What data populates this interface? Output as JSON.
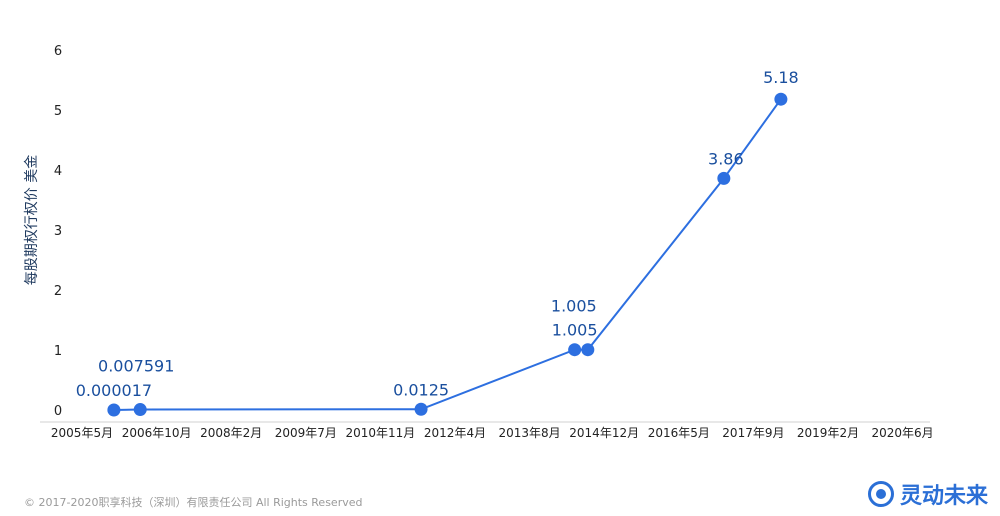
{
  "chart_data": {
    "type": "line",
    "title": "",
    "xlabel": "",
    "ylabel": "每股期权行权价 美金",
    "ylim": [
      0,
      6
    ],
    "yticks": [
      "0",
      "1",
      "2",
      "3",
      "4",
      "5",
      "6"
    ],
    "xticks": [
      "2005年5月",
      "2006年10月",
      "2008年2月",
      "2009年7月",
      "2010年11月",
      "2012年4月",
      "2013年8月",
      "2014年12月",
      "2016年5月",
      "2017年9月",
      "2019年2月",
      "2020年6月"
    ],
    "grid": false,
    "color": "#2d6fe0",
    "series": [
      {
        "x": [
          "2006-03",
          "2006-09",
          "2012-01",
          "2014-12",
          "2015-03",
          "2017-10",
          "2018-11"
        ],
        "values": [
          1.7e-05,
          0.007591,
          0.0125,
          1.005,
          1.005,
          3.86,
          5.18
        ],
        "labels": [
          "0.000017",
          "0.007591",
          "0.0125",
          "1.005",
          "1.005",
          "3.86",
          "5.18"
        ]
      }
    ]
  },
  "footer": {
    "copyright": "© 2017-2020职享科技（深圳）有限责任公司 All Rights Reserved"
  },
  "brand": {
    "name": "灵动未来",
    "icon": "brand-logo-icon"
  }
}
